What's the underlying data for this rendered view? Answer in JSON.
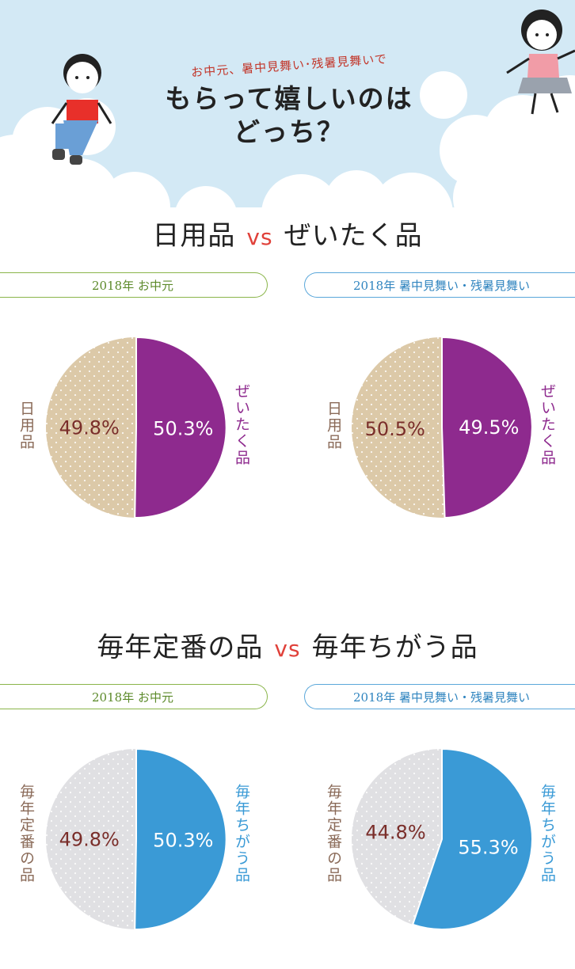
{
  "header": {
    "subtitle": "お中元、暑中見舞い･残暑見舞いで",
    "title_line1": "もらって嬉しいのは",
    "title_line2": "どっち？"
  },
  "colors": {
    "sky": "#d3e9f5",
    "purple": "#8e2a8e",
    "tan": "#dcc9a8",
    "blue": "#3a9ad6",
    "gray": "#e0e0e3",
    "label_brown": "#8a6a58",
    "pct_dark": "#7a2e2a",
    "vs_red": "#e0413a",
    "green_pill": "#8ab54a",
    "blue_pill": "#5aa7da"
  },
  "sections": [
    {
      "title_a": "日用品",
      "vs": "vs",
      "title_b": "ぜいたく品",
      "tag_left": "2018年 お中元",
      "tag_right": "2018年 暑中見舞い・残暑見舞い"
    },
    {
      "title_a": "毎年定番の品",
      "vs": "vs",
      "title_b": "毎年ちがう品",
      "tag_left": "2018年 お中元",
      "tag_right": "2018年 暑中見舞い・残暑見舞い"
    }
  ],
  "chart_data": [
    {
      "type": "pie",
      "title": "2018年 お中元",
      "categories": [
        "ぜいたく品",
        "日用品"
      ],
      "values": [
        50.3,
        49.8
      ],
      "labels": [
        "50.3%",
        "49.8%"
      ]
    },
    {
      "type": "pie",
      "title": "2018年 暑中見舞い・残暑見舞い",
      "categories": [
        "ぜいたく品",
        "日用品"
      ],
      "values": [
        49.5,
        50.5
      ],
      "labels": [
        "49.5%",
        "50.5%"
      ]
    },
    {
      "type": "pie",
      "title": "2018年 お中元",
      "categories": [
        "毎年ちがう品",
        "毎年定番の品"
      ],
      "values": [
        50.3,
        49.8
      ],
      "labels": [
        "50.3%",
        "49.8%"
      ]
    },
    {
      "type": "pie",
      "title": "2018年 暑中見舞い・残暑見舞い",
      "categories": [
        "毎年ちがう品",
        "毎年定番の品"
      ],
      "values": [
        55.3,
        44.8
      ],
      "labels": [
        "55.3%",
        "44.8%"
      ]
    }
  ]
}
